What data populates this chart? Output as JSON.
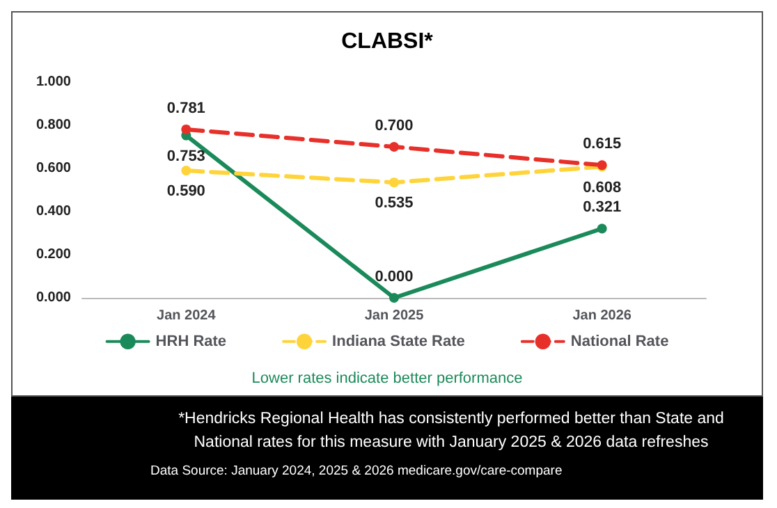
{
  "chart_data": {
    "type": "line",
    "title": "CLABSI*",
    "categories": [
      "Jan 2024",
      "Jan 2025",
      "Jan 2026"
    ],
    "series": [
      {
        "name": "HRH Rate",
        "color": "#1b8a5a",
        "values": [
          0.753,
          0.0,
          0.321
        ],
        "value_labels": [
          "0.753",
          "0.000",
          "0.321"
        ],
        "line_style": "solid"
      },
      {
        "name": "Indiana State Rate",
        "color": "#ffd43b",
        "values": [
          0.59,
          0.535,
          0.608
        ],
        "value_labels": [
          "0.590",
          "0.535",
          "0.608"
        ],
        "line_style": "dashed"
      },
      {
        "name": "National Rate",
        "color": "#e8302a",
        "values": [
          0.781,
          0.7,
          0.615
        ],
        "value_labels": [
          "0.781",
          "0.700",
          "0.615"
        ],
        "line_style": "dashed"
      }
    ],
    "ylim": [
      0,
      1
    ],
    "yticks": [
      {
        "value": 0,
        "label": "0.000"
      },
      {
        "value": 0.2,
        "label": "0.200"
      },
      {
        "value": 0.4,
        "label": "0.400"
      },
      {
        "value": 0.6,
        "label": "0.600"
      },
      {
        "value": 0.8,
        "label": "0.800"
      },
      {
        "value": 1,
        "label": "1.000"
      }
    ],
    "grid": false,
    "legend": "bottom",
    "marker": "circle",
    "annotations": [
      "Lower rates indicate better performance",
      "*Hendricks Regional Health  has consistently performed better than  State and National rates for this measure with January 2025 & 2026 data refreshes",
      "Data Source: January 2024, 2025 & 2026 medicare.gov/care-compare"
    ]
  }
}
